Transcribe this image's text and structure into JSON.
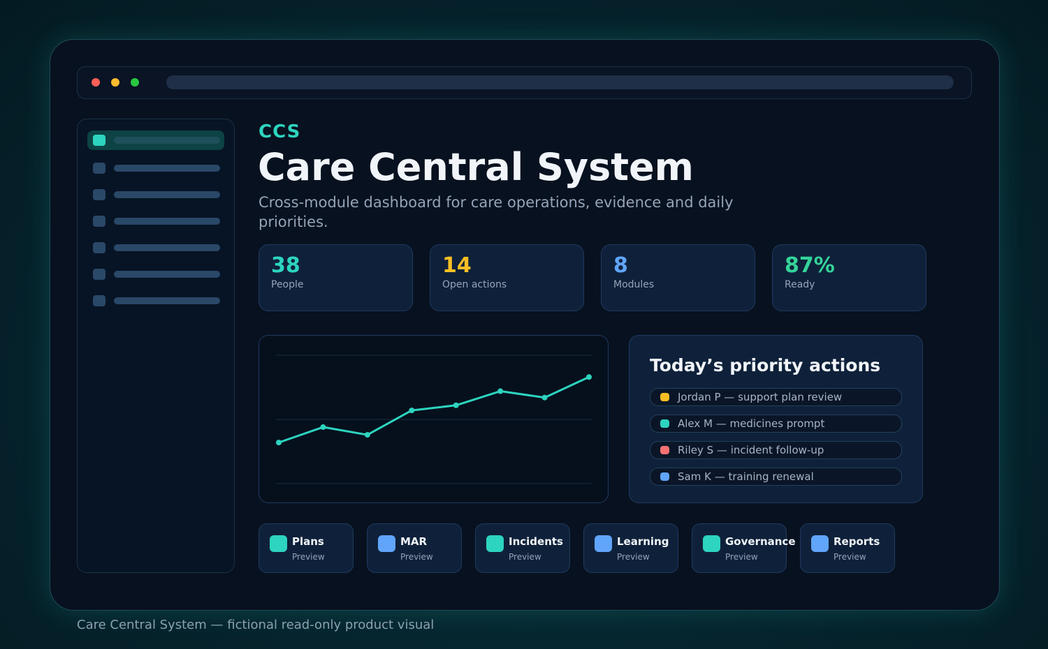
{
  "colors": {
    "accent_teal": "#2dd4bf",
    "accent_yellow": "#fbbf24",
    "accent_blue": "#60a5fa",
    "accent_green": "#34d399",
    "accent_red": "#f87171",
    "window_red": "#ff5f57",
    "window_yellow": "#febc2e",
    "window_green": "#28c840"
  },
  "header": {
    "eyebrow": "CCS",
    "title": "Care Central System",
    "subtitle": "Cross-module dashboard for care operations, evidence and daily priorities."
  },
  "sidebar": {
    "items": [
      {
        "active": true
      },
      {
        "active": false
      },
      {
        "active": false
      },
      {
        "active": false
      },
      {
        "active": false
      },
      {
        "active": false
      },
      {
        "active": false
      }
    ]
  },
  "stats": [
    {
      "value": "38",
      "label": "People",
      "color": "#2dd4bf"
    },
    {
      "value": "14",
      "label": "Open actions",
      "color": "#fbbf24"
    },
    {
      "value": "8",
      "label": "Modules",
      "color": "#60a5fa"
    },
    {
      "value": "87%",
      "label": "Ready",
      "color": "#34d399"
    }
  ],
  "chart_data": {
    "type": "line",
    "y_min": 0,
    "y_max": 100,
    "gridlines": [
      0,
      50,
      100
    ],
    "series": [
      {
        "values": [
          32,
          44,
          38,
          57,
          61,
          72,
          67,
          83
        ],
        "color": "#2dd4bf"
      }
    ]
  },
  "actions": {
    "title": "Today’s priority actions",
    "items": [
      {
        "text": "Jordan P — support plan review",
        "color": "#fbbf24"
      },
      {
        "text": "Alex M — medicines prompt",
        "color": "#2dd4bf"
      },
      {
        "text": "Riley S — incident follow-up",
        "color": "#f87171"
      },
      {
        "text": "Sam K — training renewal",
        "color": "#60a5fa"
      }
    ]
  },
  "modules": [
    {
      "name": "Plans",
      "sub": "Preview",
      "color": "#2dd4bf"
    },
    {
      "name": "MAR",
      "sub": "Preview",
      "color": "#60a5fa"
    },
    {
      "name": "Incidents",
      "sub": "Preview",
      "color": "#2dd4bf"
    },
    {
      "name": "Learning",
      "sub": "Preview",
      "color": "#60a5fa"
    },
    {
      "name": "Governance",
      "sub": "Preview",
      "color": "#2dd4bf"
    },
    {
      "name": "Reports",
      "sub": "Preview",
      "color": "#60a5fa"
    }
  ],
  "caption": "Care Central System — fictional read-only product visual"
}
